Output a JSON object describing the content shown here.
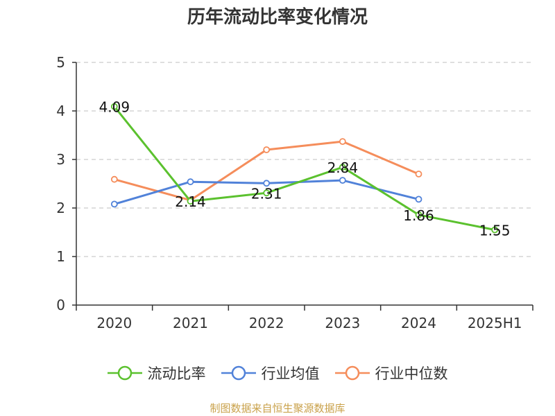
{
  "chart_data": {
    "type": "line",
    "title": "历年流动比率变化情况",
    "categories": [
      "2020",
      "2021",
      "2022",
      "2023",
      "2024",
      "2025H1"
    ],
    "ylim": [
      0,
      5
    ],
    "yticks": [
      "0",
      "1",
      "2",
      "3",
      "4",
      "5"
    ],
    "grid": true,
    "legend_position": "bottom",
    "series": [
      {
        "name": "流动比率",
        "color": "#5bc12e",
        "values": [
          4.09,
          2.14,
          2.31,
          2.84,
          1.86,
          1.55
        ],
        "labels": [
          "4.09",
          "2.14",
          "2.31",
          "2.84",
          "1.86",
          "1.55"
        ]
      },
      {
        "name": "行业均值",
        "color": "#5182d9",
        "values": [
          2.08,
          2.54,
          2.51,
          2.57,
          2.18,
          null
        ]
      },
      {
        "name": "行业中位数",
        "color": "#f58d5b",
        "values": [
          2.59,
          2.16,
          3.2,
          3.37,
          2.7,
          null
        ]
      }
    ]
  },
  "footer": {
    "source": "制图数据来自恒生聚源数据库"
  }
}
